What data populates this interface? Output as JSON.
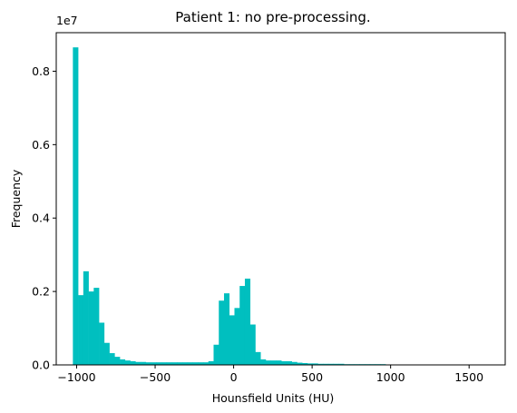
{
  "chart_data": {
    "type": "bar",
    "title": "Patient 1: no pre-processing.",
    "xlabel": "Hounsfield Units (HU)",
    "ylabel": "Frequency",
    "y_offset_label": "1e7",
    "color": "#00bfbf",
    "xlim": [
      -1130,
      1730
    ],
    "ylim": [
      0,
      9.05
    ],
    "xticks": [
      -1000,
      -500,
      0,
      500,
      1000,
      1500
    ],
    "xtick_labels": [
      "−1000",
      "−500",
      "0",
      "500",
      "1000",
      "1500"
    ],
    "yticks": [
      0,
      2,
      4,
      6,
      8
    ],
    "ytick_labels": [
      "0.0",
      "0.2",
      "0.4",
      "0.6",
      "0.8"
    ],
    "bin_start": -1024,
    "bin_width": 33.2,
    "values": [
      8.65,
      1.9,
      2.55,
      2.0,
      2.1,
      1.15,
      0.6,
      0.32,
      0.22,
      0.15,
      0.12,
      0.1,
      0.08,
      0.08,
      0.07,
      0.07,
      0.07,
      0.07,
      0.07,
      0.07,
      0.07,
      0.07,
      0.07,
      0.07,
      0.07,
      0.07,
      0.1,
      0.55,
      1.75,
      1.95,
      1.35,
      1.55,
      2.15,
      2.35,
      1.1,
      0.35,
      0.15,
      0.12,
      0.12,
      0.12,
      0.1,
      0.1,
      0.08,
      0.06,
      0.05,
      0.04,
      0.04,
      0.03,
      0.03,
      0.03,
      0.03,
      0.03,
      0.02,
      0.02,
      0.02,
      0.02,
      0.02,
      0.02,
      0.02,
      0.02,
      0.01,
      0.01,
      0.01,
      0.01,
      0.01
    ]
  }
}
